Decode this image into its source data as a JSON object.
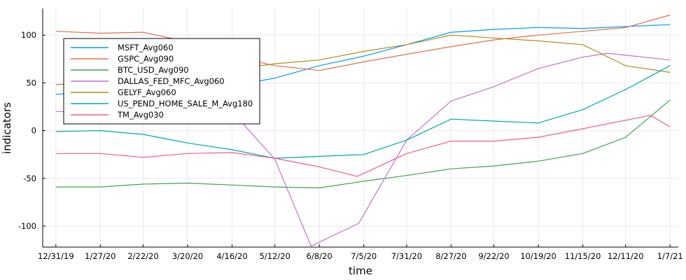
{
  "chart_data": {
    "type": "line",
    "xlabel": "time",
    "ylabel": "indicators",
    "x_ticks": [
      "12/31/19",
      "1/27/20",
      "2/22/20",
      "3/20/20",
      "4/16/20",
      "5/12/20",
      "6/8/20",
      "7/5/20",
      "7/31/20",
      "8/27/20",
      "9/22/20",
      "10/19/20",
      "11/15/20",
      "12/11/20",
      "1/7/21"
    ],
    "x_range": [
      "2019-12-23",
      "2021-01-12"
    ],
    "y_ticks": [
      -100,
      -50,
      0,
      50,
      100
    ],
    "ylim": [
      -122,
      128
    ],
    "grid": true,
    "legend_position": "top-left",
    "series": [
      {
        "name": "MSFT_Avg060",
        "color": "#009AFA",
        "x": [
          "2019-12-31",
          "2020-01-27",
          "2020-02-22",
          "2020-03-20",
          "2020-04-16",
          "2020-05-12",
          "2020-06-08",
          "2020-07-05",
          "2020-07-31",
          "2020-08-27",
          "2020-09-22",
          "2020-10-19",
          "2020-11-15",
          "2020-12-11",
          "2021-01-07"
        ],
        "y": [
          38,
          42,
          45,
          45,
          47,
          55,
          68,
          78,
          90,
          103,
          106,
          108,
          107,
          109,
          111
        ]
      },
      {
        "name": "GSPC_Avg090",
        "color": "#E36F47",
        "x": [
          "2019-12-31",
          "2020-01-27",
          "2020-02-22",
          "2020-03-20",
          "2020-04-16",
          "2020-05-12",
          "2020-06-08",
          "2020-07-05",
          "2020-07-31",
          "2020-08-27",
          "2020-09-22",
          "2020-10-19",
          "2020-11-15",
          "2020-12-11",
          "2021-01-07"
        ],
        "y": [
          104,
          102,
          103,
          93,
          78,
          68,
          63,
          72,
          80,
          88,
          95,
          100,
          104,
          108,
          121
        ]
      },
      {
        "name": "BTC_USD_Avg090",
        "color": "#3EA44E",
        "x": [
          "2019-12-31",
          "2020-01-27",
          "2020-02-22",
          "2020-03-20",
          "2020-04-16",
          "2020-05-12",
          "2020-06-08",
          "2020-07-05",
          "2020-07-31",
          "2020-08-27",
          "2020-09-22",
          "2020-10-19",
          "2020-11-15",
          "2020-12-11",
          "2021-01-07"
        ],
        "y": [
          -59,
          -59,
          -56,
          -55,
          -57,
          -59,
          -60,
          -53,
          -47,
          -40,
          -37,
          -32,
          -24,
          -7,
          32
        ]
      },
      {
        "name": "DALLAS_FED_MFC_Avg060",
        "color": "#C271D2",
        "x": [
          "2019-12-31",
          "2020-04-16",
          "2020-05-12",
          "2020-06-03",
          "2020-07-02",
          "2020-07-31",
          "2020-08-27",
          "2020-09-22",
          "2020-10-19",
          "2020-11-15",
          "2020-11-30",
          "2021-01-07"
        ],
        "y": [
          20,
          20,
          -30,
          -121,
          -97,
          -10,
          31,
          46,
          65,
          77,
          81,
          74
        ]
      },
      {
        "name": "GELYF_Avg060",
        "color": "#AC8D18",
        "x": [
          "2019-12-31",
          "2020-01-27",
          "2020-02-22",
          "2020-03-20",
          "2020-04-16",
          "2020-05-12",
          "2020-06-08",
          "2020-07-05",
          "2020-07-31",
          "2020-08-27",
          "2020-09-22",
          "2020-10-19",
          "2020-11-15",
          "2020-12-11",
          "2021-01-07"
        ],
        "y": [
          48,
          52,
          55,
          58,
          64,
          70,
          74,
          83,
          90,
          100,
          97,
          94,
          90,
          68,
          61
        ]
      },
      {
        "name": "US_PEND_HOME_SALE_M_Avg180",
        "color": "#00A9AD",
        "x": [
          "2019-12-31",
          "2020-01-27",
          "2020-02-22",
          "2020-03-20",
          "2020-04-16",
          "2020-05-12",
          "2020-06-08",
          "2020-07-05",
          "2020-07-31",
          "2020-08-27",
          "2020-09-22",
          "2020-10-19",
          "2020-11-15",
          "2020-12-11",
          "2021-01-07"
        ],
        "y": [
          -1,
          0,
          -4,
          -13,
          -20,
          -29,
          -27,
          -25,
          -10,
          12,
          10,
          8,
          22,
          43,
          68
        ]
      },
      {
        "name": "TM_Avg030",
        "color": "#ED5D92",
        "x": [
          "2019-12-31",
          "2020-01-27",
          "2020-02-22",
          "2020-03-20",
          "2020-04-16",
          "2020-05-12",
          "2020-06-08",
          "2020-07-01",
          "2020-07-31",
          "2020-08-27",
          "2020-09-22",
          "2020-10-19",
          "2020-11-15",
          "2020-12-26",
          "2021-01-07"
        ],
        "y": [
          -24,
          -24,
          -28,
          -24,
          -23,
          -29,
          -38,
          -48,
          -24,
          -11,
          -11,
          -7,
          2,
          16,
          4
        ]
      }
    ]
  }
}
